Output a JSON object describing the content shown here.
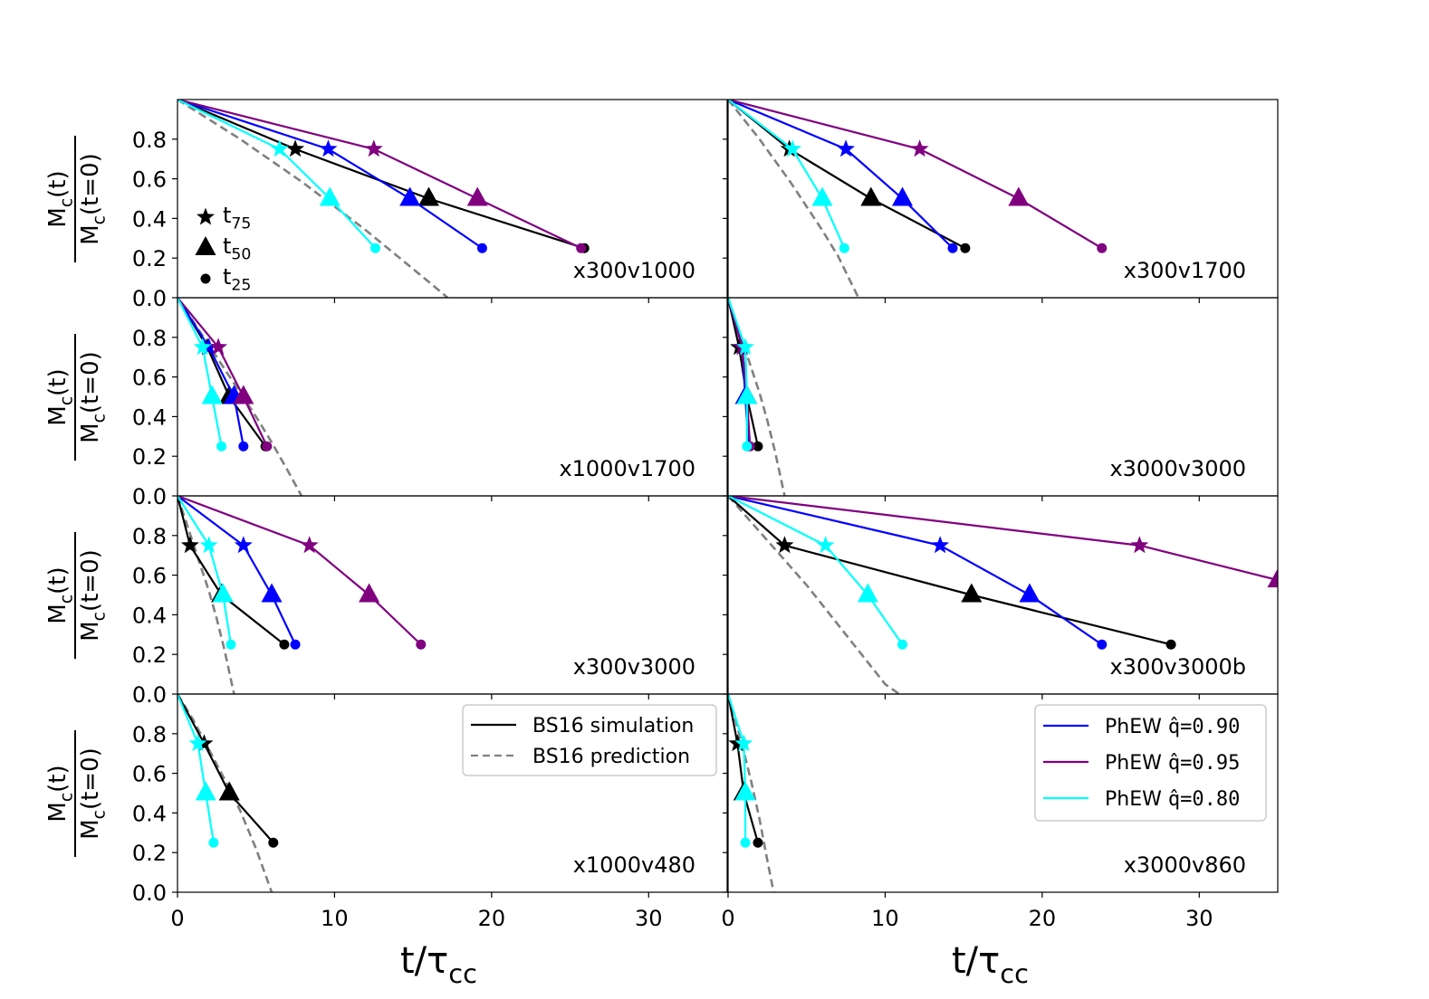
{
  "figure": {
    "xlabel": "t/τ",
    "xlabel_sub": "cc",
    "ylabel": {
      "numerator": "M",
      "numerator_sub": "c",
      "numerator_tail": "(t)",
      "denominator": "M",
      "denominator_sub": "c",
      "denominator_tail": "(t=0)"
    },
    "marker_key": [
      {
        "marker": "star",
        "label": "t",
        "sub": "75"
      },
      {
        "marker": "triangle",
        "label": "t",
        "sub": "50"
      },
      {
        "marker": "circle",
        "label": "t",
        "sub": "25"
      }
    ],
    "legend_left": [
      {
        "label": "BS16 simulation",
        "color": "#000000",
        "dash": "solid"
      },
      {
        "label": "BS16 prediction",
        "color": "#808080",
        "dash": "dashed"
      }
    ],
    "legend_right": [
      {
        "label": "PhEW q̂=0.90",
        "prefix": "PhEW ",
        "hat": "q̂",
        "rest": "=0.90",
        "color": "#0000ff"
      },
      {
        "label": "PhEW q̂=0.95",
        "prefix": "PhEW ",
        "hat": "q̂",
        "rest": "=0.95",
        "color": "#800080"
      },
      {
        "label": "PhEW q̂=0.80",
        "prefix": "PhEW ",
        "hat": "q̂",
        "rest": "=0.80",
        "color": "#00ffff"
      }
    ]
  },
  "chart_data": [
    {
      "type": "line",
      "title": "x300v1000",
      "xlim": [
        0,
        35
      ],
      "ylim": [
        0,
        1
      ],
      "yticks": [
        "0.0",
        "0.2",
        "0.4",
        "0.6",
        "0.8"
      ],
      "xticks": [
        "0",
        "10",
        "20",
        "30"
      ],
      "show_xticks": false,
      "show_yticks": true,
      "series": [
        {
          "name": "BS16 simulation",
          "color": "#000000",
          "x": [
            0,
            7.5,
            16.0,
            25.9
          ],
          "y": [
            1,
            0.75,
            0.5,
            0.25
          ]
        },
        {
          "name": "PhEW q̂=0.90",
          "color": "#0000ff",
          "x": [
            0,
            9.6,
            14.8,
            19.4
          ],
          "y": [
            1,
            0.75,
            0.5,
            0.25
          ]
        },
        {
          "name": "PhEW q̂=0.95",
          "color": "#800080",
          "x": [
            0,
            12.5,
            19.1,
            25.7
          ],
          "y": [
            1,
            0.75,
            0.5,
            0.25
          ]
        },
        {
          "name": "PhEW q̂=0.80",
          "color": "#00ffff",
          "x": [
            0,
            6.5,
            9.7,
            12.6
          ],
          "y": [
            1,
            0.75,
            0.5,
            0.25
          ]
        }
      ],
      "prediction": {
        "name": "BS16 prediction",
        "color": "#808080",
        "x": [
          0,
          2,
          4,
          6,
          8,
          10,
          12,
          14,
          16,
          17.2
        ],
        "y": [
          1,
          0.9,
          0.8,
          0.69,
          0.58,
          0.46,
          0.34,
          0.21,
          0.08,
          0
        ]
      }
    },
    {
      "type": "line",
      "title": "x300v1700",
      "xlim": [
        0,
        35
      ],
      "ylim": [
        0,
        1
      ],
      "yticks": [
        "0.0",
        "0.2",
        "0.4",
        "0.6",
        "0.8"
      ],
      "xticks": [
        "0",
        "10",
        "20",
        "30"
      ],
      "show_xticks": false,
      "show_yticks": false,
      "series": [
        {
          "name": "BS16 simulation",
          "color": "#000000",
          "x": [
            0,
            3.9,
            9.1,
            15.1
          ],
          "y": [
            1,
            0.75,
            0.5,
            0.25
          ]
        },
        {
          "name": "PhEW q̂=0.90",
          "color": "#0000ff",
          "x": [
            0,
            7.5,
            11.1,
            14.3
          ],
          "y": [
            1,
            0.75,
            0.5,
            0.25
          ]
        },
        {
          "name": "PhEW q̂=0.95",
          "color": "#800080",
          "x": [
            0,
            12.2,
            18.5,
            23.8
          ],
          "y": [
            1,
            0.75,
            0.5,
            0.25
          ]
        },
        {
          "name": "PhEW q̂=0.80",
          "color": "#00ffff",
          "x": [
            0,
            4.1,
            6.0,
            7.4
          ],
          "y": [
            1,
            0.75,
            0.5,
            0.25
          ]
        }
      ],
      "prediction": {
        "name": "BS16 prediction",
        "color": "#808080",
        "x": [
          0,
          1,
          2,
          3,
          4,
          5,
          6,
          7,
          8.3
        ],
        "y": [
          1,
          0.9,
          0.8,
          0.69,
          0.58,
          0.46,
          0.34,
          0.21,
          0
        ]
      }
    },
    {
      "type": "line",
      "title": "x1000v1700",
      "xlim": [
        0,
        35
      ],
      "ylim": [
        0,
        1
      ],
      "yticks": [
        "0.0",
        "0.2",
        "0.4",
        "0.6",
        "0.8"
      ],
      "xticks": [
        "0",
        "10",
        "20",
        "30"
      ],
      "show_xticks": false,
      "show_yticks": true,
      "series": [
        {
          "name": "BS16 simulation",
          "color": "#000000",
          "x": [
            0,
            1.9,
            3.3,
            5.6
          ],
          "y": [
            1,
            0.75,
            0.5,
            0.25
          ]
        },
        {
          "name": "PhEW q̂=0.90",
          "color": "#0000ff",
          "x": [
            0,
            2.0,
            3.6,
            4.2
          ],
          "y": [
            1,
            0.75,
            0.5,
            0.25
          ]
        },
        {
          "name": "PhEW q̂=0.95",
          "color": "#800080",
          "x": [
            0,
            2.6,
            4.2,
            5.7
          ],
          "y": [
            1,
            0.75,
            0.5,
            0.25
          ]
        },
        {
          "name": "PhEW q̂=0.80",
          "color": "#00ffff",
          "x": [
            0,
            1.6,
            2.2,
            2.8
          ],
          "y": [
            1,
            0.75,
            0.5,
            0.25
          ]
        }
      ],
      "prediction": {
        "name": "BS16 prediction",
        "color": "#808080",
        "x": [
          0,
          1,
          2,
          3,
          4,
          5,
          6,
          7,
          7.9
        ],
        "y": [
          1,
          0.88,
          0.76,
          0.64,
          0.52,
          0.4,
          0.27,
          0.13,
          0
        ]
      }
    },
    {
      "type": "line",
      "title": "x3000v3000",
      "xlim": [
        0,
        35
      ],
      "ylim": [
        0,
        1
      ],
      "yticks": [
        "0.0",
        "0.2",
        "0.4",
        "0.6",
        "0.8"
      ],
      "xticks": [
        "0",
        "10",
        "20",
        "30"
      ],
      "show_xticks": false,
      "show_yticks": false,
      "series": [
        {
          "name": "BS16 simulation",
          "color": "#000000",
          "x": [
            0,
            0.7,
            1.2,
            1.9
          ],
          "y": [
            1,
            0.75,
            0.5,
            0.25
          ]
        },
        {
          "name": "PhEW q̂=0.90",
          "color": "#0000ff",
          "x": [
            0,
            0.9,
            1.1,
            1.3
          ],
          "y": [
            1,
            0.75,
            0.5,
            0.25
          ]
        },
        {
          "name": "PhEW q̂=0.95",
          "color": "#800080",
          "x": [
            0,
            0.9,
            1.2,
            1.4
          ],
          "y": [
            1,
            0.75,
            0.5,
            0.25
          ]
        },
        {
          "name": "PhEW q̂=0.80",
          "color": "#00ffff",
          "x": [
            0,
            1.1,
            1.2,
            1.2
          ],
          "y": [
            1,
            0.75,
            0.5,
            0.25
          ]
        }
      ],
      "prediction": {
        "name": "BS16 prediction",
        "color": "#808080",
        "x": [
          0,
          0.5,
          1,
          1.5,
          2,
          2.5,
          3,
          3.6
        ],
        "y": [
          1,
          0.88,
          0.76,
          0.64,
          0.52,
          0.38,
          0.22,
          0
        ]
      }
    },
    {
      "type": "line",
      "title": "x300v3000",
      "xlim": [
        0,
        35
      ],
      "ylim": [
        0,
        1
      ],
      "yticks": [
        "0.0",
        "0.2",
        "0.4",
        "0.6",
        "0.8"
      ],
      "xticks": [
        "0",
        "10",
        "20",
        "30"
      ],
      "show_xticks": false,
      "show_yticks": true,
      "series": [
        {
          "name": "BS16 simulation",
          "color": "#000000",
          "x": [
            0,
            0.8,
            2.8,
            6.8
          ],
          "y": [
            1,
            0.75,
            0.5,
            0.25
          ]
        },
        {
          "name": "PhEW q̂=0.90",
          "color": "#0000ff",
          "x": [
            0,
            4.2,
            6.0,
            7.5
          ],
          "y": [
            1,
            0.75,
            0.5,
            0.25
          ]
        },
        {
          "name": "PhEW q̂=0.95",
          "color": "#800080",
          "x": [
            0,
            8.4,
            12.2,
            15.5
          ],
          "y": [
            1,
            0.75,
            0.5,
            0.25
          ]
        },
        {
          "name": "PhEW q̂=0.80",
          "color": "#00ffff",
          "x": [
            0,
            2.0,
            2.9,
            3.4
          ],
          "y": [
            1,
            0.75,
            0.5,
            0.25
          ]
        }
      ],
      "prediction": {
        "name": "BS16 prediction",
        "color": "#808080",
        "x": [
          0,
          0.5,
          1,
          1.5,
          2,
          2.5,
          3,
          3.6
        ],
        "y": [
          1,
          0.88,
          0.76,
          0.64,
          0.52,
          0.38,
          0.22,
          0
        ]
      }
    },
    {
      "type": "line",
      "title": "x300v3000b",
      "xlim": [
        0,
        35
      ],
      "ylim": [
        0,
        1
      ],
      "yticks": [
        "0.0",
        "0.2",
        "0.4",
        "0.6",
        "0.8"
      ],
      "xticks": [
        "0",
        "10",
        "20",
        "30"
      ],
      "show_xticks": false,
      "show_yticks": false,
      "series": [
        {
          "name": "BS16 simulation",
          "color": "#000000",
          "x": [
            0,
            3.6,
            15.5,
            28.2
          ],
          "y": [
            1,
            0.75,
            0.5,
            0.25
          ]
        },
        {
          "name": "PhEW q̂=0.90",
          "color": "#0000ff",
          "x": [
            0,
            13.5,
            19.2,
            23.8
          ],
          "y": [
            1,
            0.75,
            0.5,
            0.25
          ]
        },
        {
          "name": "PhEW q̂=0.95",
          "color": "#800080",
          "x": [
            0,
            26.2,
            35
          ],
          "y": [
            1,
            0.75,
            0.575
          ]
        },
        {
          "name": "PhEW q̂=0.80",
          "color": "#00ffff",
          "x": [
            0,
            6.2,
            8.9,
            11.1
          ],
          "y": [
            1,
            0.75,
            0.5,
            0.25
          ]
        }
      ],
      "prediction": {
        "name": "BS16 prediction",
        "color": "#808080",
        "x": [
          0,
          1,
          2,
          3,
          4,
          5,
          6,
          7,
          8,
          9,
          10,
          10.9
        ],
        "y": [
          1,
          0.91,
          0.82,
          0.73,
          0.64,
          0.55,
          0.45,
          0.35,
          0.25,
          0.15,
          0.05,
          0
        ]
      }
    },
    {
      "type": "line",
      "title": "x1000v480",
      "xlim": [
        0,
        35
      ],
      "ylim": [
        0,
        1
      ],
      "yticks": [
        "0.0",
        "0.2",
        "0.4",
        "0.6",
        "0.8"
      ],
      "xticks": [
        "0",
        "10",
        "20",
        "30"
      ],
      "show_xticks": true,
      "show_yticks": true,
      "series": [
        {
          "name": "BS16 simulation",
          "color": "#000000",
          "x": [
            0,
            1.7,
            3.3,
            6.1
          ],
          "y": [
            1,
            0.75,
            0.5,
            0.25
          ]
        },
        {
          "name": "PhEW q̂=0.80",
          "color": "#00ffff",
          "x": [
            0,
            1.3,
            1.8,
            2.3
          ],
          "y": [
            1,
            0.75,
            0.5,
            0.25
          ]
        }
      ],
      "prediction": {
        "name": "BS16 prediction",
        "color": "#808080",
        "x": [
          0,
          1,
          2,
          3,
          4,
          5,
          6.0
        ],
        "y": [
          1,
          0.87,
          0.72,
          0.57,
          0.41,
          0.22,
          0
        ]
      }
    },
    {
      "type": "line",
      "title": "x3000v860",
      "xlim": [
        0,
        35
      ],
      "ylim": [
        0,
        1
      ],
      "yticks": [
        "0.0",
        "0.2",
        "0.4",
        "0.6",
        "0.8"
      ],
      "xticks": [
        "0",
        "10",
        "20",
        "30"
      ],
      "show_xticks": true,
      "show_yticks": false,
      "series": [
        {
          "name": "BS16 simulation",
          "color": "#000000",
          "x": [
            0,
            0.6,
            1.0,
            1.9
          ],
          "y": [
            1,
            0.75,
            0.5,
            0.25
          ]
        },
        {
          "name": "PhEW q̂=0.80",
          "color": "#00ffff",
          "x": [
            0,
            1.0,
            1.1,
            1.1
          ],
          "y": [
            1,
            0.75,
            0.5,
            0.25
          ]
        }
      ],
      "prediction": {
        "name": "BS16 prediction",
        "color": "#808080",
        "x": [
          0,
          0.5,
          1,
          1.5,
          2,
          2.5,
          2.9
        ],
        "y": [
          1,
          0.86,
          0.71,
          0.55,
          0.37,
          0.16,
          0
        ]
      }
    }
  ]
}
